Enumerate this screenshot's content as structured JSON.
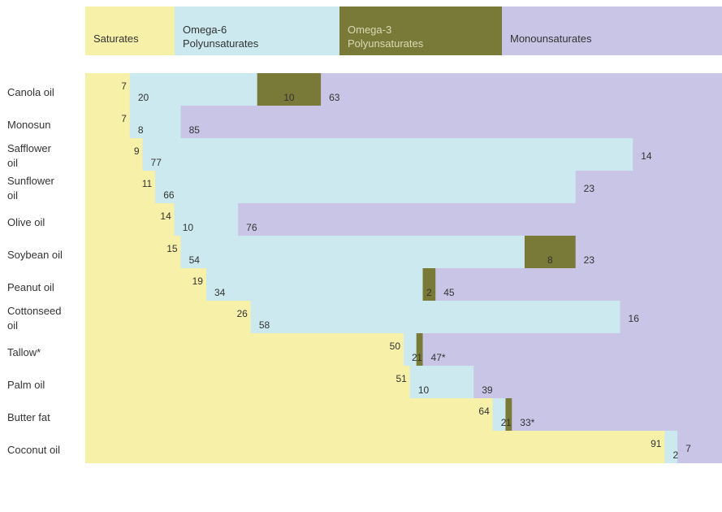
{
  "chart_data": {
    "type": "bar",
    "stacked": true,
    "orientation": "horizontal",
    "title": "",
    "xlabel": "",
    "ylabel": "",
    "legend_position": "top",
    "series": [
      {
        "name": "Saturates",
        "color": "#f7f0a8"
      },
      {
        "name": "Omega-6 Polyunsaturates",
        "color": "#cbe9ee"
      },
      {
        "name": "Omega-3 Polyunsaturates",
        "color": "#7a7a38"
      },
      {
        "name": "Monounsaturates",
        "color": "#c9c5e6"
      }
    ],
    "legend_lines": [
      [
        "Saturates"
      ],
      [
        "Omega-6",
        "Polyunsaturates"
      ],
      [
        "Omega-3",
        "Polyunsaturates"
      ],
      [
        "Monounsaturates"
      ]
    ],
    "categories": [
      {
        "lines": [
          "Canola oil"
        ],
        "values": [
          7,
          20,
          10,
          63
        ],
        "labels": [
          "7",
          "20",
          "10",
          "63"
        ]
      },
      {
        "lines": [
          "Monosun"
        ],
        "values": [
          7,
          8,
          0,
          85
        ],
        "labels": [
          "7",
          "8",
          "",
          "85"
        ]
      },
      {
        "lines": [
          "Safflower",
          "oil"
        ],
        "values": [
          9,
          77,
          0,
          14
        ],
        "labels": [
          "9",
          "77",
          "",
          "14"
        ]
      },
      {
        "lines": [
          "Sunflower",
          "oil"
        ],
        "values": [
          11,
          66,
          0,
          23
        ],
        "labels": [
          "11",
          "66",
          "",
          "23"
        ]
      },
      {
        "lines": [
          "Olive oil"
        ],
        "values": [
          14,
          10,
          0,
          76
        ],
        "labels": [
          "14",
          "10",
          "",
          "76"
        ]
      },
      {
        "lines": [
          "Soybean oil"
        ],
        "values": [
          15,
          54,
          8,
          23
        ],
        "labels": [
          "15",
          "54",
          "8",
          "23"
        ]
      },
      {
        "lines": [
          "Peanut oil"
        ],
        "values": [
          19,
          34,
          2,
          45
        ],
        "labels": [
          "19",
          "34",
          "2",
          "45"
        ]
      },
      {
        "lines": [
          "Cottonseed",
          "oil"
        ],
        "values": [
          26,
          58,
          0,
          16
        ],
        "labels": [
          "26",
          "58",
          "",
          "16"
        ]
      },
      {
        "lines": [
          "Tallow*"
        ],
        "values": [
          50,
          2,
          1,
          47
        ],
        "labels": [
          "50",
          "2",
          "1",
          "47*"
        ]
      },
      {
        "lines": [
          "Palm oil"
        ],
        "values": [
          51,
          10,
          0,
          39
        ],
        "labels": [
          "51",
          "10",
          "",
          "39"
        ]
      },
      {
        "lines": [
          "Butter fat"
        ],
        "values": [
          64,
          2,
          1,
          33
        ],
        "labels": [
          "64",
          "2",
          "1",
          "33*"
        ]
      },
      {
        "lines": [
          "Coconut oil"
        ],
        "values": [
          91,
          2,
          0,
          7
        ],
        "labels": [
          "91",
          "2",
          "",
          "7"
        ]
      }
    ]
  }
}
